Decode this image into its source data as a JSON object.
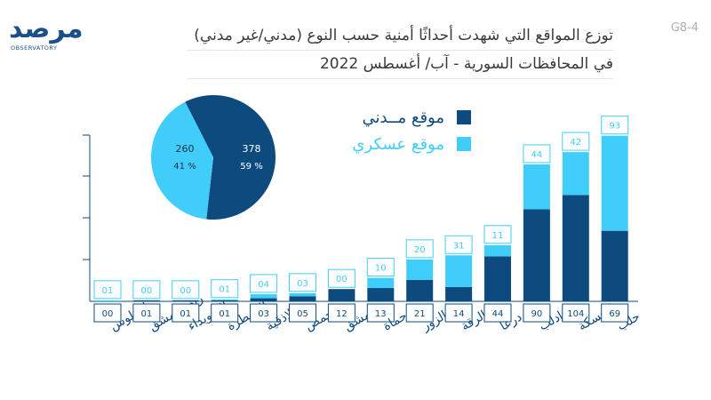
{
  "header": {
    "logo": "مرصد",
    "logo_sub": "OBSERVATORY",
    "code": "G8-4",
    "title_line1": "توزع المواقع التي شهدت أحداثًا أمنية حسب النوع (مدني/غير مدني)",
    "title_line2": "في المحافظات السورية - آب/ أغسطس 2022"
  },
  "colors": {
    "civil": "#0d4a7e",
    "military": "#41cdfa",
    "label_border": "#41cdfa",
    "label_text": "#41cdfa",
    "bottom_border": "#0d4a7e",
    "bottom_text": "#0d4a7e",
    "axis_text": "#0d4a7e",
    "axis_line": "#0d4a7e"
  },
  "chart_data": [
    {
      "type": "bar",
      "stacked": true,
      "categories": [
        "طرطوس",
        "ريف دمشق",
        "السويداء",
        "القنيطرة",
        "اللاذقية",
        "حمص",
        "دمشق",
        "حماة",
        "دير الزور",
        "الرقة",
        "درعا",
        "إدلب",
        "الحسكة",
        "حلب"
      ],
      "series": [
        {
          "name": "موقع مــدني",
          "values": [
            0,
            1,
            1,
            1,
            3,
            5,
            12,
            13,
            21,
            14,
            44,
            90,
            104,
            69
          ],
          "labels": [
            "00",
            "01",
            "01",
            "01",
            "03",
            "05",
            "12",
            "13",
            "21",
            "14",
            "44",
            "90",
            "104",
            "69"
          ]
        },
        {
          "name": "موقع عسكري",
          "values": [
            1,
            0,
            0,
            1,
            4,
            3,
            0,
            10,
            20,
            31,
            11,
            44,
            42,
            93
          ],
          "labels": [
            "01",
            "00",
            "00",
            "01",
            "04",
            "03",
            "00",
            "10",
            "20",
            "31",
            "11",
            "44",
            "42",
            "93"
          ]
        }
      ],
      "ylim": [
        0,
        170
      ],
      "legend": "top-center"
    },
    {
      "type": "pie",
      "slices": [
        {
          "name": "موقع مــدني",
          "value": 378,
          "percent_label": "59 %"
        },
        {
          "name": "موقع عسكري",
          "value": 260,
          "percent_label": "41 %"
        }
      ]
    }
  ]
}
